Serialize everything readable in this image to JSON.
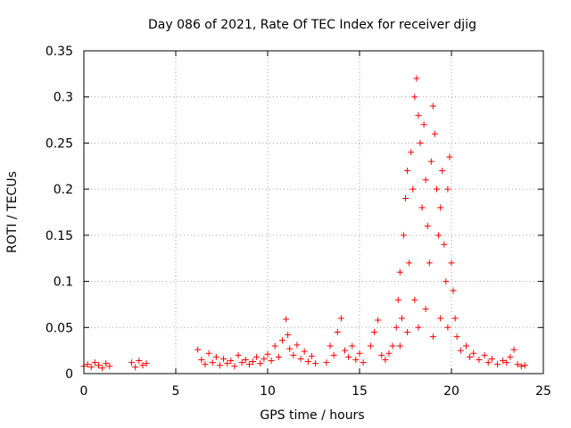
{
  "chart_data": {
    "type": "scatter",
    "title": "Day 086 of 2021, Rate Of TEC Index for receiver djig",
    "xlabel": "GPS time / hours",
    "ylabel": "ROTI / TECUs",
    "xlim": [
      0,
      25
    ],
    "ylim": [
      0,
      0.35
    ],
    "x_ticks": [
      0,
      5,
      10,
      15,
      20,
      25
    ],
    "x_tick_labels": [
      "0",
      "5",
      "10",
      "15",
      "20",
      "25"
    ],
    "y_ticks": [
      0,
      0.05,
      0.1,
      0.15,
      0.2,
      0.25,
      0.3,
      0.35
    ],
    "y_tick_labels": [
      "0",
      "0.05",
      "0.1",
      "0.15",
      "0.2",
      "0.25",
      "0.3",
      "0.35"
    ],
    "grid": true,
    "marker": "+",
    "marker_color": "#ff0000",
    "series": [
      {
        "name": "ROTI",
        "points": [
          [
            0.0,
            0.008
          ],
          [
            0.2,
            0.01
          ],
          [
            0.4,
            0.007
          ],
          [
            0.6,
            0.012
          ],
          [
            0.8,
            0.009
          ],
          [
            1.0,
            0.006
          ],
          [
            1.2,
            0.011
          ],
          [
            1.4,
            0.008
          ],
          [
            2.6,
            0.012
          ],
          [
            2.8,
            0.007
          ],
          [
            3.0,
            0.014
          ],
          [
            3.2,
            0.009
          ],
          [
            3.4,
            0.011
          ],
          [
            6.2,
            0.026
          ],
          [
            6.4,
            0.015
          ],
          [
            6.6,
            0.01
          ],
          [
            6.8,
            0.022
          ],
          [
            7.0,
            0.012
          ],
          [
            7.2,
            0.018
          ],
          [
            7.4,
            0.009
          ],
          [
            7.6,
            0.016
          ],
          [
            7.8,
            0.011
          ],
          [
            8.0,
            0.014
          ],
          [
            8.2,
            0.008
          ],
          [
            8.4,
            0.02
          ],
          [
            8.6,
            0.012
          ],
          [
            8.8,
            0.015
          ],
          [
            9.0,
            0.01
          ],
          [
            9.2,
            0.013
          ],
          [
            9.4,
            0.018
          ],
          [
            9.6,
            0.011
          ],
          [
            9.8,
            0.016
          ],
          [
            10.0,
            0.021
          ],
          [
            10.2,
            0.014
          ],
          [
            10.4,
            0.03
          ],
          [
            10.6,
            0.018
          ],
          [
            10.8,
            0.036
          ],
          [
            11.0,
            0.059
          ],
          [
            11.1,
            0.042
          ],
          [
            11.2,
            0.027
          ],
          [
            11.4,
            0.02
          ],
          [
            11.6,
            0.031
          ],
          [
            11.8,
            0.016
          ],
          [
            12.0,
            0.024
          ],
          [
            12.2,
            0.013
          ],
          [
            12.4,
            0.019
          ],
          [
            12.6,
            0.011
          ],
          [
            13.2,
            0.012
          ],
          [
            13.4,
            0.03
          ],
          [
            13.6,
            0.02
          ],
          [
            13.8,
            0.045
          ],
          [
            14.0,
            0.06
          ],
          [
            14.2,
            0.025
          ],
          [
            14.4,
            0.018
          ],
          [
            14.6,
            0.03
          ],
          [
            14.8,
            0.015
          ],
          [
            15.0,
            0.022
          ],
          [
            15.2,
            0.012
          ],
          [
            15.6,
            0.03
          ],
          [
            15.8,
            0.045
          ],
          [
            16.0,
            0.058
          ],
          [
            16.2,
            0.02
          ],
          [
            16.4,
            0.015
          ],
          [
            16.6,
            0.022
          ],
          [
            16.8,
            0.03
          ],
          [
            17.0,
            0.05
          ],
          [
            17.1,
            0.08
          ],
          [
            17.2,
            0.11
          ],
          [
            17.3,
            0.06
          ],
          [
            17.4,
            0.15
          ],
          [
            17.5,
            0.19
          ],
          [
            17.6,
            0.22
          ],
          [
            17.7,
            0.12
          ],
          [
            17.8,
            0.24
          ],
          [
            17.9,
            0.2
          ],
          [
            18.0,
            0.3
          ],
          [
            18.1,
            0.32
          ],
          [
            18.2,
            0.28
          ],
          [
            18.3,
            0.25
          ],
          [
            18.4,
            0.18
          ],
          [
            18.5,
            0.27
          ],
          [
            18.6,
            0.21
          ],
          [
            18.7,
            0.16
          ],
          [
            18.8,
            0.12
          ],
          [
            18.9,
            0.23
          ],
          [
            19.0,
            0.29
          ],
          [
            19.1,
            0.26
          ],
          [
            19.2,
            0.2
          ],
          [
            19.3,
            0.15
          ],
          [
            19.4,
            0.18
          ],
          [
            19.5,
            0.22
          ],
          [
            19.6,
            0.14
          ],
          [
            19.7,
            0.1
          ],
          [
            19.8,
            0.2
          ],
          [
            19.9,
            0.235
          ],
          [
            20.0,
            0.12
          ],
          [
            20.1,
            0.09
          ],
          [
            20.2,
            0.06
          ],
          [
            20.3,
            0.04
          ],
          [
            17.2,
            0.03
          ],
          [
            17.6,
            0.045
          ],
          [
            18.0,
            0.08
          ],
          [
            18.2,
            0.05
          ],
          [
            18.6,
            0.07
          ],
          [
            19.0,
            0.04
          ],
          [
            19.4,
            0.06
          ],
          [
            19.8,
            0.05
          ],
          [
            20.5,
            0.025
          ],
          [
            20.8,
            0.03
          ],
          [
            21.0,
            0.018
          ],
          [
            21.2,
            0.022
          ],
          [
            21.5,
            0.015
          ],
          [
            21.8,
            0.02
          ],
          [
            22.0,
            0.012
          ],
          [
            22.2,
            0.016
          ],
          [
            22.5,
            0.01
          ],
          [
            22.8,
            0.014
          ],
          [
            23.0,
            0.012
          ],
          [
            23.2,
            0.018
          ],
          [
            23.4,
            0.026
          ],
          [
            23.6,
            0.01
          ],
          [
            23.8,
            0.008
          ],
          [
            24.0,
            0.009
          ]
        ]
      }
    ]
  }
}
